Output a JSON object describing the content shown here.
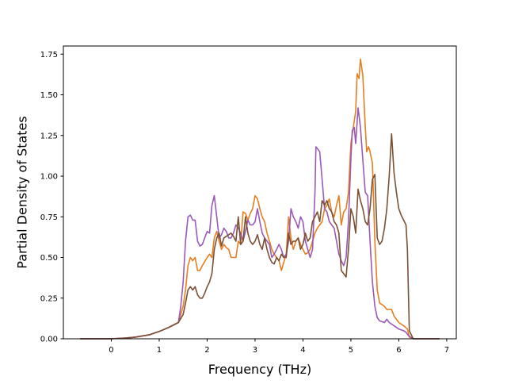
{
  "chart_data": {
    "type": "line",
    "title": "",
    "xlabel": "Frequency (THz)",
    "ylabel": "Partial Density of States",
    "xlim": [
      -1.0,
      7.2
    ],
    "ylim": [
      0.0,
      1.8
    ],
    "xticks": [
      0,
      1,
      2,
      3,
      4,
      5,
      6,
      7
    ],
    "xtick_labels": [
      "0",
      "1",
      "2",
      "3",
      "4",
      "5",
      "6",
      "7"
    ],
    "yticks": [
      0.0,
      0.25,
      0.5,
      0.75,
      1.0,
      1.25,
      1.5,
      1.75
    ],
    "ytick_labels": [
      "0.00",
      "0.25",
      "0.50",
      "0.75",
      "1.00",
      "1.25",
      "1.50",
      "1.75"
    ],
    "grid": false,
    "legend": "none",
    "series": [
      {
        "color": "#e67e22",
        "points": [
          [
            -0.65,
            0
          ],
          [
            0,
            0
          ],
          [
            0.3,
            0.005
          ],
          [
            0.5,
            0.01
          ],
          [
            0.8,
            0.025
          ],
          [
            1.0,
            0.045
          ],
          [
            1.2,
            0.07
          ],
          [
            1.4,
            0.1
          ],
          [
            1.5,
            0.2
          ],
          [
            1.55,
            0.3
          ],
          [
            1.6,
            0.45
          ],
          [
            1.65,
            0.5
          ],
          [
            1.7,
            0.48
          ],
          [
            1.75,
            0.5
          ],
          [
            1.8,
            0.42
          ],
          [
            1.85,
            0.42
          ],
          [
            1.9,
            0.45
          ],
          [
            2.0,
            0.5
          ],
          [
            2.05,
            0.52
          ],
          [
            2.1,
            0.5
          ],
          [
            2.15,
            0.62
          ],
          [
            2.2,
            0.66
          ],
          [
            2.25,
            0.6
          ],
          [
            2.3,
            0.55
          ],
          [
            2.35,
            0.58
          ],
          [
            2.4,
            0.56
          ],
          [
            2.45,
            0.55
          ],
          [
            2.5,
            0.5
          ],
          [
            2.6,
            0.5
          ],
          [
            2.65,
            0.6
          ],
          [
            2.7,
            0.58
          ],
          [
            2.75,
            0.78
          ],
          [
            2.8,
            0.77
          ],
          [
            2.85,
            0.73
          ],
          [
            2.9,
            0.77
          ],
          [
            2.95,
            0.8
          ],
          [
            3.0,
            0.88
          ],
          [
            3.05,
            0.86
          ],
          [
            3.1,
            0.8
          ],
          [
            3.15,
            0.75
          ],
          [
            3.2,
            0.72
          ],
          [
            3.25,
            0.65
          ],
          [
            3.3,
            0.6
          ],
          [
            3.35,
            0.55
          ],
          [
            3.4,
            0.52
          ],
          [
            3.45,
            0.5
          ],
          [
            3.5,
            0.48
          ],
          [
            3.55,
            0.42
          ],
          [
            3.6,
            0.47
          ],
          [
            3.65,
            0.52
          ],
          [
            3.7,
            0.75
          ],
          [
            3.75,
            0.62
          ],
          [
            3.8,
            0.55
          ],
          [
            3.85,
            0.6
          ],
          [
            3.9,
            0.62
          ],
          [
            3.95,
            0.58
          ],
          [
            4.0,
            0.55
          ],
          [
            4.05,
            0.52
          ],
          [
            4.1,
            0.53
          ],
          [
            4.15,
            0.55
          ],
          [
            4.2,
            0.6
          ],
          [
            4.25,
            0.65
          ],
          [
            4.3,
            0.68
          ],
          [
            4.35,
            0.7
          ],
          [
            4.4,
            0.72
          ],
          [
            4.45,
            0.8
          ],
          [
            4.5,
            0.82
          ],
          [
            4.55,
            0.86
          ],
          [
            4.6,
            0.78
          ],
          [
            4.65,
            0.75
          ],
          [
            4.7,
            0.82
          ],
          [
            4.75,
            0.88
          ],
          [
            4.8,
            0.7
          ],
          [
            4.85,
            0.78
          ],
          [
            4.9,
            0.8
          ],
          [
            4.95,
            0.9
          ],
          [
            5.0,
            1.2
          ],
          [
            5.05,
            1.3
          ],
          [
            5.1,
            1.4
          ],
          [
            5.13,
            1.63
          ],
          [
            5.17,
            1.6
          ],
          [
            5.2,
            1.72
          ],
          [
            5.25,
            1.62
          ],
          [
            5.3,
            1.3
          ],
          [
            5.33,
            1.15
          ],
          [
            5.37,
            1.18
          ],
          [
            5.4,
            1.15
          ],
          [
            5.45,
            1.08
          ],
          [
            5.5,
            0.6
          ],
          [
            5.55,
            0.3
          ],
          [
            5.6,
            0.22
          ],
          [
            5.7,
            0.2
          ],
          [
            5.75,
            0.18
          ],
          [
            5.85,
            0.18
          ],
          [
            5.9,
            0.14
          ],
          [
            6.0,
            0.1
          ],
          [
            6.1,
            0.08
          ],
          [
            6.18,
            0.06
          ],
          [
            6.22,
            0.01
          ],
          [
            6.3,
            0
          ],
          [
            6.85,
            0
          ]
        ]
      },
      {
        "color": "#9b59b6",
        "points": [
          [
            -0.65,
            0
          ],
          [
            0,
            0
          ],
          [
            0.3,
            0.005
          ],
          [
            0.5,
            0.01
          ],
          [
            0.8,
            0.025
          ],
          [
            1.0,
            0.045
          ],
          [
            1.2,
            0.07
          ],
          [
            1.4,
            0.1
          ],
          [
            1.45,
            0.2
          ],
          [
            1.5,
            0.35
          ],
          [
            1.55,
            0.6
          ],
          [
            1.6,
            0.75
          ],
          [
            1.65,
            0.76
          ],
          [
            1.7,
            0.73
          ],
          [
            1.75,
            0.73
          ],
          [
            1.8,
            0.6
          ],
          [
            1.85,
            0.57
          ],
          [
            1.9,
            0.58
          ],
          [
            1.95,
            0.62
          ],
          [
            2.0,
            0.66
          ],
          [
            2.05,
            0.65
          ],
          [
            2.1,
            0.82
          ],
          [
            2.15,
            0.88
          ],
          [
            2.2,
            0.75
          ],
          [
            2.25,
            0.62
          ],
          [
            2.3,
            0.64
          ],
          [
            2.35,
            0.68
          ],
          [
            2.4,
            0.66
          ],
          [
            2.45,
            0.62
          ],
          [
            2.5,
            0.62
          ],
          [
            2.55,
            0.65
          ],
          [
            2.6,
            0.7
          ],
          [
            2.65,
            0.68
          ],
          [
            2.7,
            0.65
          ],
          [
            2.75,
            0.6
          ],
          [
            2.8,
            0.66
          ],
          [
            2.85,
            0.73
          ],
          [
            2.9,
            0.7
          ],
          [
            2.95,
            0.7
          ],
          [
            3.0,
            0.72
          ],
          [
            3.05,
            0.8
          ],
          [
            3.1,
            0.72
          ],
          [
            3.15,
            0.65
          ],
          [
            3.2,
            0.62
          ],
          [
            3.25,
            0.6
          ],
          [
            3.3,
            0.58
          ],
          [
            3.35,
            0.5
          ],
          [
            3.4,
            0.52
          ],
          [
            3.45,
            0.55
          ],
          [
            3.5,
            0.58
          ],
          [
            3.55,
            0.55
          ],
          [
            3.6,
            0.5
          ],
          [
            3.65,
            0.52
          ],
          [
            3.7,
            0.6
          ],
          [
            3.75,
            0.8
          ],
          [
            3.8,
            0.75
          ],
          [
            3.85,
            0.72
          ],
          [
            3.9,
            0.68
          ],
          [
            3.95,
            0.75
          ],
          [
            4.0,
            0.72
          ],
          [
            4.05,
            0.6
          ],
          [
            4.1,
            0.55
          ],
          [
            4.15,
            0.5
          ],
          [
            4.2,
            0.55
          ],
          [
            4.25,
            0.9
          ],
          [
            4.27,
            1.18
          ],
          [
            4.3,
            1.17
          ],
          [
            4.35,
            1.15
          ],
          [
            4.4,
            0.98
          ],
          [
            4.45,
            0.8
          ],
          [
            4.5,
            0.78
          ],
          [
            4.55,
            0.72
          ],
          [
            4.6,
            0.7
          ],
          [
            4.65,
            0.68
          ],
          [
            4.7,
            0.6
          ],
          [
            4.75,
            0.52
          ],
          [
            4.8,
            0.48
          ],
          [
            4.85,
            0.45
          ],
          [
            4.9,
            0.5
          ],
          [
            4.95,
            0.72
          ],
          [
            5.0,
            1.1
          ],
          [
            5.03,
            1.28
          ],
          [
            5.07,
            1.3
          ],
          [
            5.1,
            1.2
          ],
          [
            5.15,
            1.42
          ],
          [
            5.2,
            1.3
          ],
          [
            5.25,
            1.1
          ],
          [
            5.3,
            0.9
          ],
          [
            5.35,
            0.88
          ],
          [
            5.4,
            0.6
          ],
          [
            5.45,
            0.35
          ],
          [
            5.5,
            0.2
          ],
          [
            5.55,
            0.13
          ],
          [
            5.6,
            0.11
          ],
          [
            5.7,
            0.1
          ],
          [
            5.75,
            0.12
          ],
          [
            5.8,
            0.1
          ],
          [
            5.9,
            0.08
          ],
          [
            6.0,
            0.06
          ],
          [
            6.1,
            0.05
          ],
          [
            6.15,
            0.04
          ],
          [
            6.2,
            0.02
          ],
          [
            6.3,
            0
          ],
          [
            6.85,
            0
          ]
        ]
      },
      {
        "color": "#7b5033",
        "points": [
          [
            -0.65,
            0
          ],
          [
            0,
            0
          ],
          [
            0.3,
            0.005
          ],
          [
            0.5,
            0.01
          ],
          [
            0.8,
            0.025
          ],
          [
            1.0,
            0.045
          ],
          [
            1.2,
            0.07
          ],
          [
            1.4,
            0.1
          ],
          [
            1.5,
            0.15
          ],
          [
            1.55,
            0.22
          ],
          [
            1.6,
            0.3
          ],
          [
            1.65,
            0.32
          ],
          [
            1.7,
            0.3
          ],
          [
            1.75,
            0.32
          ],
          [
            1.8,
            0.27
          ],
          [
            1.85,
            0.25
          ],
          [
            1.9,
            0.25
          ],
          [
            1.95,
            0.28
          ],
          [
            2.0,
            0.32
          ],
          [
            2.05,
            0.35
          ],
          [
            2.1,
            0.4
          ],
          [
            2.15,
            0.55
          ],
          [
            2.2,
            0.62
          ],
          [
            2.25,
            0.65
          ],
          [
            2.3,
            0.57
          ],
          [
            2.35,
            0.62
          ],
          [
            2.4,
            0.63
          ],
          [
            2.45,
            0.64
          ],
          [
            2.5,
            0.65
          ],
          [
            2.55,
            0.63
          ],
          [
            2.6,
            0.6
          ],
          [
            2.65,
            0.75
          ],
          [
            2.7,
            0.58
          ],
          [
            2.75,
            0.6
          ],
          [
            2.8,
            0.75
          ],
          [
            2.85,
            0.65
          ],
          [
            2.9,
            0.6
          ],
          [
            2.95,
            0.58
          ],
          [
            3.0,
            0.6
          ],
          [
            3.05,
            0.64
          ],
          [
            3.1,
            0.58
          ],
          [
            3.15,
            0.55
          ],
          [
            3.2,
            0.62
          ],
          [
            3.25,
            0.55
          ],
          [
            3.3,
            0.5
          ],
          [
            3.35,
            0.47
          ],
          [
            3.4,
            0.46
          ],
          [
            3.45,
            0.5
          ],
          [
            3.5,
            0.48
          ],
          [
            3.55,
            0.52
          ],
          [
            3.6,
            0.5
          ],
          [
            3.65,
            0.5
          ],
          [
            3.7,
            0.65
          ],
          [
            3.75,
            0.58
          ],
          [
            3.8,
            0.6
          ],
          [
            3.85,
            0.6
          ],
          [
            3.9,
            0.62
          ],
          [
            3.95,
            0.55
          ],
          [
            4.0,
            0.58
          ],
          [
            4.05,
            0.65
          ],
          [
            4.1,
            0.6
          ],
          [
            4.15,
            0.62
          ],
          [
            4.2,
            0.72
          ],
          [
            4.25,
            0.75
          ],
          [
            4.3,
            0.78
          ],
          [
            4.35,
            0.72
          ],
          [
            4.4,
            0.85
          ],
          [
            4.45,
            0.82
          ],
          [
            4.5,
            0.85
          ],
          [
            4.55,
            0.8
          ],
          [
            4.6,
            0.78
          ],
          [
            4.65,
            0.72
          ],
          [
            4.7,
            0.7
          ],
          [
            4.75,
            0.65
          ],
          [
            4.8,
            0.42
          ],
          [
            4.85,
            0.4
          ],
          [
            4.9,
            0.38
          ],
          [
            4.95,
            0.55
          ],
          [
            5.0,
            0.8
          ],
          [
            5.05,
            0.75
          ],
          [
            5.1,
            0.65
          ],
          [
            5.15,
            0.92
          ],
          [
            5.2,
            0.85
          ],
          [
            5.25,
            0.8
          ],
          [
            5.3,
            0.72
          ],
          [
            5.35,
            0.7
          ],
          [
            5.4,
            0.8
          ],
          [
            5.45,
            0.98
          ],
          [
            5.5,
            1.01
          ],
          [
            5.55,
            0.62
          ],
          [
            5.6,
            0.58
          ],
          [
            5.65,
            0.6
          ],
          [
            5.7,
            0.68
          ],
          [
            5.75,
            0.8
          ],
          [
            5.8,
            1.0
          ],
          [
            5.85,
            1.26
          ],
          [
            5.9,
            1.02
          ],
          [
            5.95,
            0.9
          ],
          [
            6.0,
            0.8
          ],
          [
            6.05,
            0.76
          ],
          [
            6.1,
            0.73
          ],
          [
            6.15,
            0.7
          ],
          [
            6.18,
            0.55
          ],
          [
            6.22,
            0.05
          ],
          [
            6.3,
            0
          ],
          [
            6.85,
            0
          ]
        ]
      }
    ]
  }
}
